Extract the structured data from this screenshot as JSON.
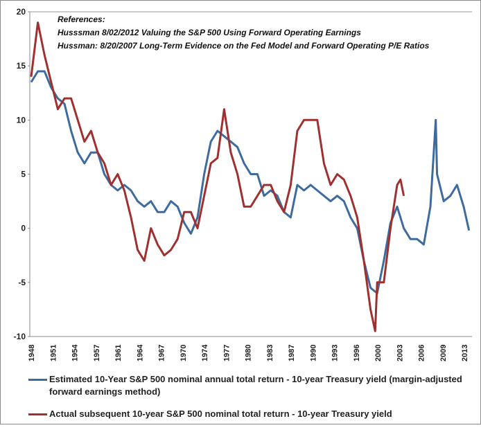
{
  "chart_data": {
    "type": "line",
    "title": "",
    "references": {
      "heading": "References:",
      "lines": [
        "Husssman 8/02/2012  Valuing the S&P 500 Using Forward Operating Earnings",
        "Hussman: 8/20/2007  Long-Term Evidence on the Fed Model and Forward Operating P/E Ratios"
      ]
    },
    "xlabel": "",
    "ylabel": "",
    "xlim": [
      1948,
      2014
    ],
    "ylim": [
      -10,
      20
    ],
    "y_ticks": [
      20,
      15,
      10,
      5,
      0,
      -5,
      -10
    ],
    "x_tick_labels": [
      "1948",
      "1951",
      "1954",
      "1957",
      "1961",
      "1964",
      "1967",
      "1970",
      "1974",
      "1977",
      "1980",
      "1983",
      "1987",
      "1990",
      "1993",
      "1996",
      "2000",
      "2003",
      "2006",
      "2009",
      "2013"
    ],
    "grid": false,
    "legend_position": "bottom",
    "series": [
      {
        "name": "Estimated 10-Year S&P 500 nominal annual total return - 10-year Treasury yield (margin-adjusted forward earnings method)",
        "color": "#3E6B9F",
        "x": [
          1948,
          1949,
          1950,
          1951,
          1952,
          1953,
          1954,
          1955,
          1956,
          1957,
          1958,
          1959,
          1960,
          1961,
          1962,
          1963,
          1964,
          1965,
          1966,
          1967,
          1968,
          1969,
          1970,
          1971,
          1972,
          1973,
          1974,
          1975,
          1976,
          1977,
          1978,
          1979,
          1980,
          1981,
          1982,
          1983,
          1984,
          1985,
          1986,
          1987,
          1988,
          1989,
          1990,
          1991,
          1992,
          1993,
          1994,
          1995,
          1996,
          1997,
          1998,
          1999,
          2000,
          2001,
          2002,
          2003,
          2004,
          2005,
          2006,
          2007,
          2008,
          2008.8,
          2009,
          2010,
          2011,
          2012,
          2013,
          2013.8
        ],
        "y": [
          13.5,
          14.5,
          14.5,
          13,
          12,
          11.5,
          9,
          7,
          6,
          7,
          7,
          5,
          4,
          3.5,
          4,
          3.5,
          2.5,
          2,
          2.5,
          1.5,
          1.5,
          2.5,
          2,
          0.5,
          -0.5,
          1,
          5,
          8,
          9,
          8.5,
          8,
          7.5,
          6,
          5,
          5,
          3,
          3.5,
          3,
          1.5,
          1,
          4,
          3.5,
          4,
          3.5,
          3,
          2.5,
          3,
          2.5,
          1,
          0,
          -3,
          -5.5,
          -6,
          -3,
          0.5,
          2,
          0,
          -1,
          -1,
          -1.5,
          2,
          10,
          5,
          2.5,
          3,
          4,
          2,
          -0.2
        ]
      },
      {
        "name": "Actual subsequent 10-year S&P 500 nominal total return - 10-year Treasury yield",
        "color": "#A0302F",
        "x": [
          1948,
          1949,
          1950,
          1951,
          1952,
          1953,
          1954,
          1955,
          1956,
          1957,
          1958,
          1959,
          1960,
          1961,
          1962,
          1963,
          1964,
          1965,
          1966,
          1967,
          1968,
          1969,
          1970,
          1971,
          1972,
          1973,
          1974,
          1975,
          1976,
          1977,
          1978,
          1979,
          1980,
          1981,
          1982,
          1983,
          1984,
          1985,
          1986,
          1987,
          1988,
          1989,
          1990,
          1991,
          1992,
          1993,
          1994,
          1995,
          1996,
          1997,
          1998,
          1999,
          1999.7,
          2000,
          2001,
          2002,
          2003,
          2003.5,
          2004
        ],
        "y": [
          14,
          19,
          16,
          13.5,
          11,
          12,
          12,
          10,
          8,
          9,
          7,
          6,
          4,
          5,
          3.5,
          1,
          -2,
          -3,
          0,
          -1.5,
          -2.5,
          -2,
          -1,
          1.5,
          1.5,
          0,
          3,
          6,
          6.5,
          11,
          7,
          5,
          2,
          2,
          3,
          4,
          4,
          2.5,
          1.5,
          4,
          9,
          10,
          10,
          10,
          6,
          4,
          5,
          4.5,
          3,
          1,
          -3,
          -7.5,
          -9.5,
          -5,
          -5,
          0,
          4,
          4.5,
          3
        ]
      }
    ]
  }
}
